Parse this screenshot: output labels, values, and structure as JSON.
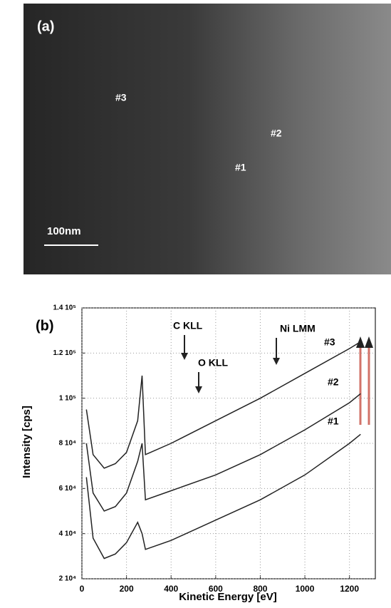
{
  "image_panel": {
    "label": "(a)",
    "markers": [
      "#3",
      "#2",
      "#1"
    ],
    "scale_bar": "100nm"
  },
  "chart_data": {
    "type": "line",
    "panel_label": "(b)",
    "xlabel": "Kinetic Energy  [eV]",
    "ylabel": "Intensity  [cps]",
    "x": [
      20,
      50,
      100,
      150,
      200,
      250,
      270,
      285,
      400,
      600,
      800,
      1000,
      1200,
      1250
    ],
    "series": [
      {
        "name": "#3",
        "color": "#222222",
        "values": [
          95000,
          75000,
          69000,
          71000,
          76000,
          90000,
          110000,
          75000,
          80000,
          90000,
          100000,
          111000,
          122000,
          125000
        ]
      },
      {
        "name": "#2",
        "color": "#222222",
        "values": [
          80000,
          58000,
          50000,
          52000,
          58000,
          72000,
          80000,
          55000,
          59000,
          66000,
          75000,
          86000,
          98000,
          102000
        ]
      },
      {
        "name": "#1",
        "color": "#222222",
        "values": [
          65000,
          38000,
          29000,
          31000,
          36000,
          45000,
          40000,
          33000,
          37000,
          46000,
          55000,
          66000,
          80000,
          84000
        ]
      }
    ],
    "annotations": [
      "C KLL",
      "O KLL",
      "Ni LMM"
    ],
    "xlim": [
      0,
      1316
    ],
    "ylim": [
      20000,
      140000
    ],
    "xticks": [
      0,
      200,
      400,
      600,
      800,
      1000,
      1200
    ],
    "yticks": [
      {
        "value": 20000,
        "label": "2 10⁴"
      },
      {
        "value": 40000,
        "label": "4 10⁴"
      },
      {
        "value": 60000,
        "label": "6 10⁴"
      },
      {
        "value": 80000,
        "label": "8 10⁴"
      },
      {
        "value": 100000,
        "label": "1 10⁵"
      },
      {
        "value": 120000,
        "label": "1.2 10⁵"
      },
      {
        "value": 140000,
        "label": "1.4 10⁵"
      }
    ],
    "grid": true
  }
}
